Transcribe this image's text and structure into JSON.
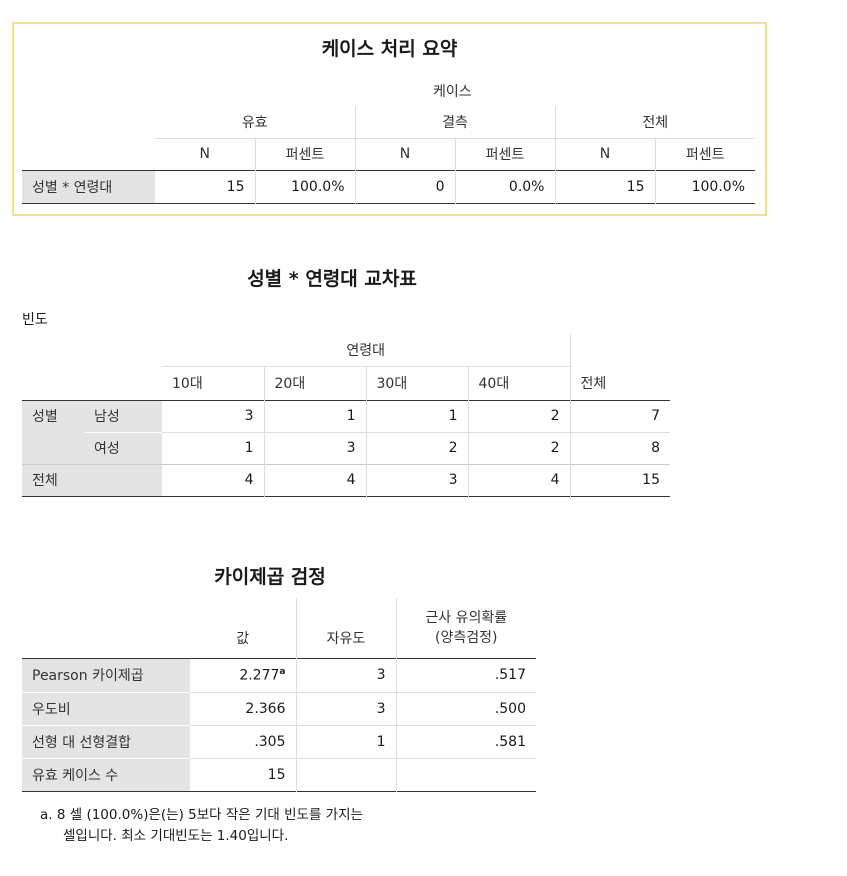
{
  "case_summary": {
    "title": "케이스 처리 요약",
    "group_header": "케이스",
    "col_groups": [
      "유효",
      "결측",
      "전체"
    ],
    "sub_headers": [
      "N",
      "퍼센트",
      "N",
      "퍼센트",
      "N",
      "퍼센트"
    ],
    "row_label": "성별 * 연령대",
    "values": [
      "15",
      "100.0%",
      "0",
      "0.0%",
      "15",
      "100.0%"
    ]
  },
  "crosstab": {
    "title": "성별 * 연령대 교차표",
    "subtitle": "빈도",
    "group_header": "연령대",
    "col_headers": [
      "10대",
      "20대",
      "30대",
      "40대",
      "전체"
    ],
    "row_var": "성별",
    "rows": [
      {
        "label": "남성",
        "values": [
          "3",
          "1",
          "1",
          "2",
          "7"
        ]
      },
      {
        "label": "여성",
        "values": [
          "1",
          "3",
          "2",
          "2",
          "8"
        ]
      }
    ],
    "total_label": "전체",
    "total_values": [
      "4",
      "4",
      "3",
      "4",
      "15"
    ]
  },
  "chisq": {
    "title": "카이제곱 검정",
    "col_headers": [
      "값",
      "자유도",
      "근사 유의확률",
      "(양측검정)"
    ],
    "rows": [
      {
        "label": "Pearson 카이제곱",
        "value": "2.277",
        "sup": "a",
        "df": "3",
        "sig": ".517"
      },
      {
        "label": "우도비",
        "value": "2.366",
        "df": "3",
        "sig": ".500"
      },
      {
        "label": "선형 대 선형결합",
        "value": ".305",
        "df": "1",
        "sig": ".581"
      },
      {
        "label": "유효 케이스 수",
        "value": "15",
        "df": "",
        "sig": ""
      }
    ],
    "footnote_line1": "a. 8 셀 (100.0%)은(는) 5보다 작은 기대 빈도를 가지는",
    "footnote_line2": "셀입니다. 최소 기대빈도는 1.40입니다."
  }
}
